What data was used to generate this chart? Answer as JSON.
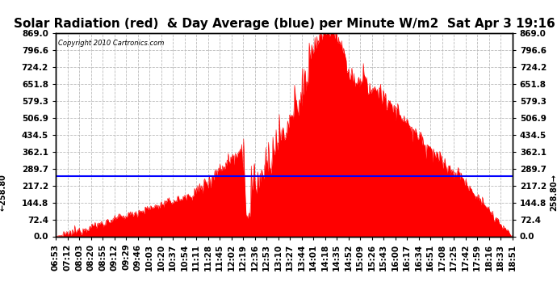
{
  "title": "Solar Radiation (red)  & Day Average (blue) per Minute W/m2  Sat Apr 3 19:16",
  "copyright_text": "Copyright 2010 Cartronics.com",
  "day_average": 258.8,
  "y_max": 869.0,
  "y_min": 0.0,
  "y_ticks": [
    0.0,
    72.4,
    144.8,
    217.2,
    289.7,
    362.1,
    434.5,
    506.9,
    579.3,
    651.8,
    724.2,
    796.6,
    869.0
  ],
  "background_color": "#ffffff",
  "fill_color": "#ff0000",
  "avg_line_color": "#0000ff",
  "x_labels": [
    "06:53",
    "07:12",
    "08:03",
    "08:20",
    "08:55",
    "09:12",
    "09:29",
    "09:46",
    "10:03",
    "10:20",
    "10:37",
    "10:54",
    "11:11",
    "11:28",
    "11:45",
    "12:02",
    "12:19",
    "12:36",
    "12:53",
    "13:10",
    "13:27",
    "13:44",
    "14:01",
    "14:18",
    "14:35",
    "14:52",
    "15:09",
    "15:26",
    "15:43",
    "16:00",
    "16:17",
    "16:34",
    "16:51",
    "17:08",
    "17:25",
    "17:42",
    "17:59",
    "18:16",
    "18:33",
    "18:51"
  ],
  "title_fontsize": 11,
  "tick_fontsize": 7.5,
  "avg_label_fontsize": 7.0
}
